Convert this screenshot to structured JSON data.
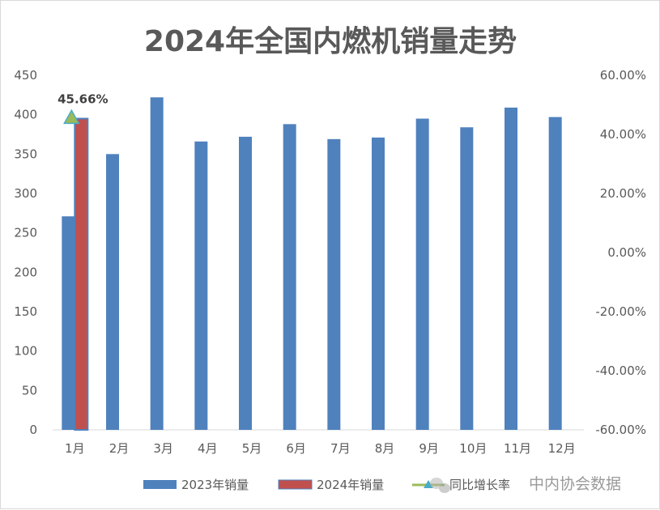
{
  "chart_data": {
    "type": "bar",
    "title": "2024年全国内燃机销量走势",
    "categories": [
      "1月",
      "2月",
      "3月",
      "4月",
      "5月",
      "6月",
      "7月",
      "8月",
      "9月",
      "10月",
      "11月",
      "12月"
    ],
    "series": [
      {
        "name": "2023年销量",
        "type": "bar",
        "axis": "left",
        "color": "#4f81bd",
        "values": [
          271,
          350,
          422,
          366,
          372,
          388,
          369,
          371,
          395,
          384,
          409,
          397
        ]
      },
      {
        "name": "2024年销量",
        "type": "bar",
        "axis": "left",
        "color": "#c0504d",
        "values": [
          395,
          null,
          null,
          null,
          null,
          null,
          null,
          null,
          null,
          null,
          null,
          null
        ]
      },
      {
        "name": "同比增长率",
        "type": "line",
        "axis": "right",
        "color": "#9bbb59",
        "marker": "triangle",
        "values": [
          45.66,
          null,
          null,
          null,
          null,
          null,
          null,
          null,
          null,
          null,
          null,
          null
        ],
        "labels": [
          "45.66%",
          null,
          null,
          null,
          null,
          null,
          null,
          null,
          null,
          null,
          null,
          null
        ]
      }
    ],
    "y_left": {
      "min": 0,
      "max": 450,
      "step": 50,
      "ticks": [
        "0",
        "50",
        "100",
        "150",
        "200",
        "250",
        "300",
        "350",
        "400",
        "450"
      ]
    },
    "y_right": {
      "min": -60,
      "max": 60,
      "step": 20,
      "ticks": [
        "-60.00%",
        "-40.00%",
        "-20.00%",
        "0.00%",
        "20.00%",
        "40.00%",
        "60.00%"
      ]
    },
    "grid": false,
    "legend_position": "bottom"
  },
  "watermark": "中内协会数据"
}
